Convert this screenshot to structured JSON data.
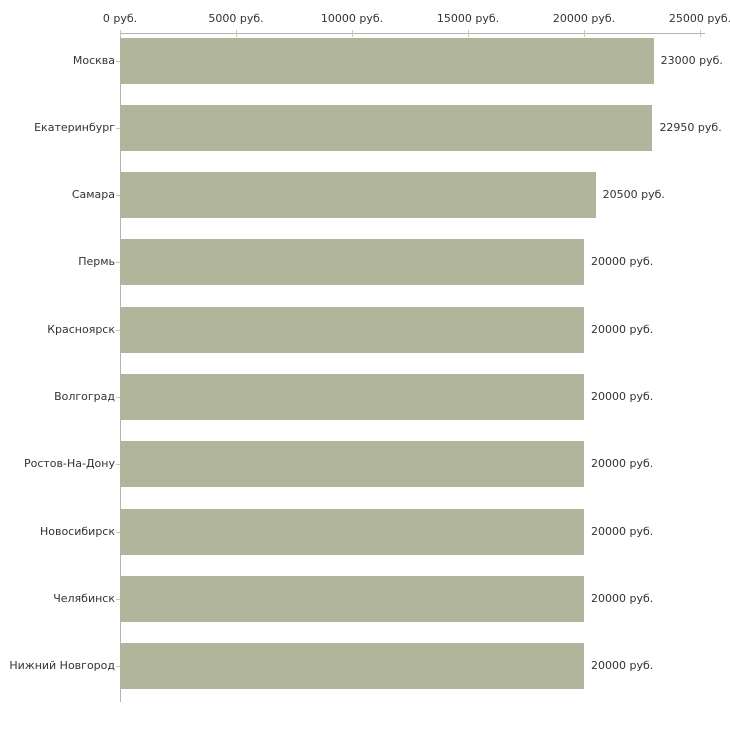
{
  "chart_data": {
    "type": "bar",
    "orientation": "horizontal",
    "title": "",
    "categories": [
      "Москва",
      "Екатеринбург",
      "Самара",
      "Пермь",
      "Красноярск",
      "Волгоград",
      "Ростов-На-Дону",
      "Новосибирск",
      "Челябинск",
      "Нижний Новгород"
    ],
    "values": [
      23000,
      22950,
      20500,
      20000,
      20000,
      20000,
      20000,
      20000,
      20000,
      20000
    ],
    "value_labels": [
      "23000 руб.",
      "22950 руб.",
      "20500 руб.",
      "20000 руб.",
      "20000 руб.",
      "20000 руб.",
      "20000 руб.",
      "20000 руб.",
      "20000 руб.",
      "20000 руб."
    ],
    "x_ticks": [
      {
        "value": 0,
        "label": "0 руб."
      },
      {
        "value": 5000,
        "label": "5000 руб."
      },
      {
        "value": 10000,
        "label": "10000 руб."
      },
      {
        "value": 15000,
        "label": "15000 руб."
      },
      {
        "value": 20000,
        "label": "20000 руб."
      },
      {
        "value": 25000,
        "label": "25000 руб."
      }
    ],
    "xlim": [
      0,
      25000
    ],
    "xlabel": "",
    "ylabel": "",
    "unit_suffix": " руб.",
    "grid": false,
    "legend": null,
    "axis_position": "top"
  },
  "colors": {
    "bar_fill": "#b0b59b",
    "axis_line": "#b3b3b3",
    "tick_mark": "#c9c9a3",
    "text": "#333333",
    "background": "#ffffff"
  }
}
